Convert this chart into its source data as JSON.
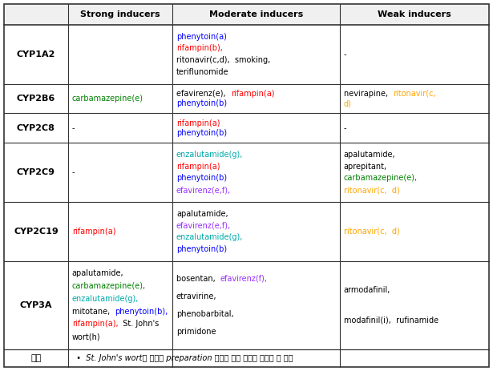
{
  "headers": [
    "",
    "Strong inducers",
    "Moderate inducers",
    "Weak inducers"
  ],
  "rows": [
    {
      "label": "CYP1A2",
      "strong": [],
      "moderate": [
        [
          [
            "phenytoin(a)",
            "#0000FF"
          ]
        ],
        [
          [
            "rifampin(b),",
            "#FF0000"
          ]
        ],
        [
          [
            "ritonavir(c,d),  smoking,",
            "#000000"
          ]
        ],
        [
          [
            "teriflunomide",
            "#000000"
          ]
        ]
      ],
      "weak": [
        [
          [
            "-",
            "#000000"
          ]
        ]
      ]
    },
    {
      "label": "CYP2B6",
      "strong": [
        [
          [
            "carbamazepine(e)",
            "#008000"
          ]
        ]
      ],
      "moderate": [
        [
          [
            "efavirenz(e),  ",
            "#000000"
          ],
          [
            "rifampin(a)",
            "#FF0000"
          ]
        ],
        [
          [
            "phenytoin(b)",
            "#0000FF"
          ]
        ]
      ],
      "weak": [
        [
          [
            "nevirapine,  ",
            "#000000"
          ],
          [
            "ritonavir(c,",
            "#FFA500"
          ]
        ],
        [
          [
            "d)",
            "#FFA500"
          ]
        ]
      ]
    },
    {
      "label": "CYP2C8",
      "strong": [
        [
          [
            "-",
            "#000000"
          ]
        ]
      ],
      "moderate": [
        [
          [
            "rifampin(a)",
            "#FF0000"
          ]
        ],
        [
          [
            "phenytoin(b)",
            "#0000FF"
          ]
        ]
      ],
      "weak": [
        [
          [
            "-",
            "#000000"
          ]
        ]
      ]
    },
    {
      "label": "CYP2C9",
      "strong": [
        [
          [
            "-",
            "#000000"
          ]
        ]
      ],
      "moderate": [
        [
          [
            "enzalutamide(g),",
            "#00AAAA"
          ]
        ],
        [
          [
            "rifampin(a)",
            "#FF0000"
          ]
        ],
        [
          [
            "phenytoin(b)",
            "#0000FF"
          ]
        ],
        [
          [
            "efavirenz(e,f),",
            "#9B30FF"
          ]
        ]
      ],
      "weak": [
        [
          [
            "apalutamide,",
            "#000000"
          ]
        ],
        [
          [
            "aprepitant,",
            "#000000"
          ]
        ],
        [
          [
            "carbamazepine(e),",
            "#008000"
          ]
        ],
        [
          [
            "ritonavir(c,  d)",
            "#FFA500"
          ]
        ]
      ]
    },
    {
      "label": "CYP2C19",
      "strong": [
        [
          [
            "rifampin(a)",
            "#FF0000"
          ]
        ]
      ],
      "moderate": [
        [
          [
            "apalutamide,",
            "#000000"
          ]
        ],
        [
          [
            "efavirenz(e,f),",
            "#9B30FF"
          ]
        ],
        [
          [
            "enzalutamide(g),",
            "#00AAAA"
          ]
        ],
        [
          [
            "phenytoin(b)",
            "#0000FF"
          ]
        ]
      ],
      "weak": [
        [
          [
            "ritonavir(c,  d)",
            "#FFA500"
          ]
        ]
      ]
    },
    {
      "label": "CYP3A",
      "strong": [
        [
          [
            "apalutamide,",
            "#000000"
          ]
        ],
        [
          [
            "carbamazepine(e),",
            "#008000"
          ]
        ],
        [
          [
            "enzalutamide(g),",
            "#00AAAA"
          ]
        ],
        [
          [
            "mitotane,  ",
            "#000000"
          ],
          [
            "phenytoin(b),",
            "#0000FF"
          ]
        ],
        [
          [
            "rifampin(a),",
            "#FF0000"
          ],
          [
            "  St. John's",
            "#000000"
          ]
        ],
        [
          [
            "wort(h)",
            "#000000"
          ]
        ]
      ],
      "moderate": [
        [
          [
            "bosentan,  ",
            "#000000"
          ],
          [
            "efavirenz(f),",
            "#9B30FF"
          ]
        ],
        [
          [
            "etravirine,",
            "#000000"
          ]
        ],
        [
          [
            "phenobarbital,",
            "#000000"
          ]
        ],
        [
          [
            "primidone",
            "#000000"
          ]
        ]
      ],
      "weak": [
        [
          [
            "armodafinil,",
            "#000000"
          ]
        ],
        [
          [
            "modafinil(i),  rufinamide",
            "#000000"
          ]
        ]
      ]
    }
  ],
  "note_label": "비고",
  "note_text": "  •  St. John's wort의 효과는 preparation 형태에 따라 다르게 나타날 수 있음",
  "bg_color": "#ffffff",
  "cell_bg": "#f0f0f0",
  "header_font_size": 8,
  "label_font_size": 8,
  "cell_font_size": 7,
  "note_font_size": 7
}
